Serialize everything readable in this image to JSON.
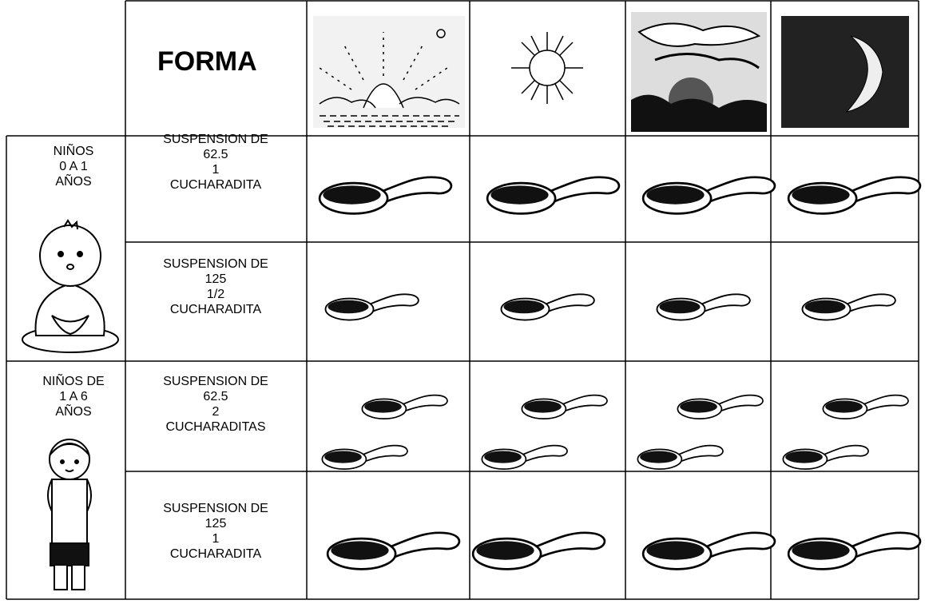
{
  "header": {
    "title": "FORMA"
  },
  "groups": [
    {
      "label": [
        "NIÑOS",
        "0 A 1",
        "AÑOS"
      ],
      "rows": [
        [
          "SUSPENSION DE",
          "62.5",
          "1",
          "CUCHARADITA"
        ],
        [
          "SUSPENSION DE",
          "125",
          "1/2",
          "CUCHARADITA"
        ]
      ]
    },
    {
      "label": [
        "NIÑOS DE",
        "1 A 6",
        "AÑOS"
      ],
      "rows": [
        [
          "SUSPENSION DE",
          "62.5",
          "2",
          "CUCHARADITAS"
        ],
        [
          "SUSPENSION DE",
          "125",
          "1",
          "CUCHARADITA"
        ]
      ]
    }
  ]
}
